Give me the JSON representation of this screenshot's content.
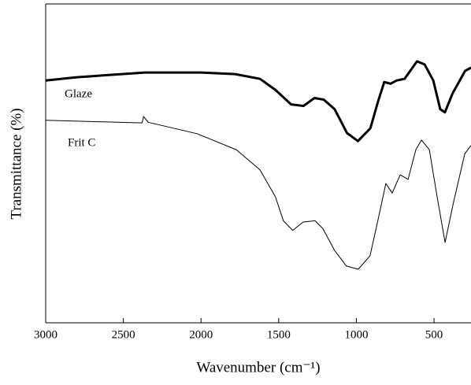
{
  "chart_data": {
    "type": "line",
    "y_label": "Transmittance (%)",
    "x_label": "Wavenumber (cm⁻¹)",
    "xlim": [
      3000,
      262
    ],
    "xticks": [
      3000,
      2500,
      2000,
      1500,
      1000,
      500
    ],
    "ylim": [
      0,
      100
    ],
    "series": [
      {
        "name": "Glaze",
        "color": "#000000",
        "x": [
          3000,
          2800,
          2360,
          2000,
          1780,
          1620,
          1520,
          1420,
          1340,
          1270,
          1210,
          1140,
          1060,
          990,
          910,
          860,
          820,
          780,
          740,
          690,
          610,
          560,
          505,
          460,
          430,
          380,
          300,
          262
        ],
        "values": [
          76,
          77,
          78.5,
          78.5,
          78,
          76.5,
          73,
          68.5,
          68,
          70.5,
          70,
          67,
          59.5,
          57,
          61,
          69.5,
          75.5,
          75,
          76,
          76.5,
          82,
          81,
          76,
          67,
          66,
          72,
          79,
          80
        ]
      },
      {
        "name": "Frit C",
        "color": "#000000",
        "x": [
          3000,
          2380,
          2370,
          2340,
          2026,
          1773,
          1621,
          1521,
          1470,
          1410,
          1342,
          1266,
          1216,
          1140,
          1064,
          988,
          912,
          862,
          810,
          769,
          718,
          667,
          617,
          581,
          530,
          480,
          429,
          378,
          302,
          262
        ],
        "values": [
          63.5,
          62.7,
          64.7,
          62.9,
          59.3,
          54.3,
          48,
          39.5,
          32,
          29,
          31.6,
          32,
          29.6,
          22.7,
          17.8,
          16.8,
          21,
          32,
          43.7,
          40.7,
          46.4,
          45,
          54.3,
          57.3,
          54.3,
          39.5,
          25.2,
          37,
          53,
          55.6
        ]
      }
    ]
  }
}
